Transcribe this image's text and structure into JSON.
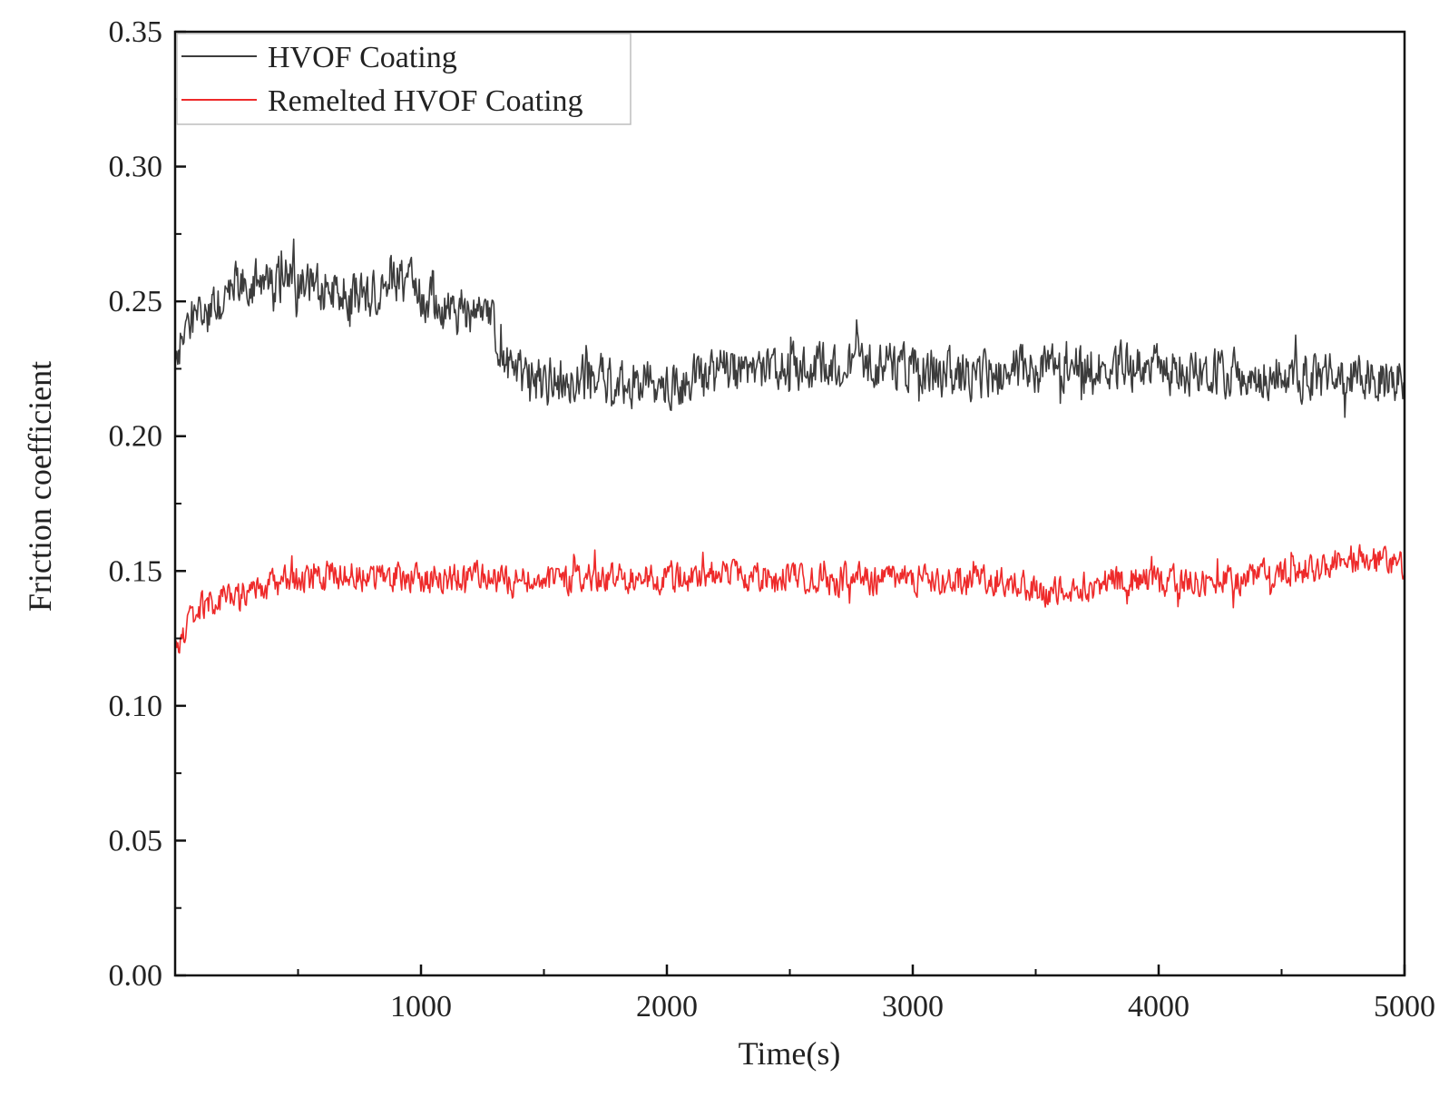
{
  "chart_data": {
    "type": "line",
    "title": "",
    "xlabel": "Time(s)",
    "ylabel": "Friction coefficient",
    "xlim": [
      0,
      5000
    ],
    "ylim": [
      0,
      0.35
    ],
    "grid": false,
    "legend_position": "top-left",
    "x_ticks": [
      {
        "value": 1000,
        "label": "1000"
      },
      {
        "value": 2000,
        "label": "2000"
      },
      {
        "value": 3000,
        "label": "3000"
      },
      {
        "value": 4000,
        "label": "4000"
      },
      {
        "value": 5000,
        "label": "5000"
      }
    ],
    "x_minor_ticks": [
      500,
      1500,
      2500,
      3500,
      4500
    ],
    "y_ticks": [
      {
        "value": 0.0,
        "label": "0.00"
      },
      {
        "value": 0.05,
        "label": "0.05"
      },
      {
        "value": 0.1,
        "label": "0.10"
      },
      {
        "value": 0.15,
        "label": "0.15"
      },
      {
        "value": 0.2,
        "label": "0.20"
      },
      {
        "value": 0.25,
        "label": "0.25"
      },
      {
        "value": 0.3,
        "label": "0.30"
      },
      {
        "value": 0.35,
        "label": "0.35"
      }
    ],
    "y_minor_ticks": [
      0.025,
      0.075,
      0.125,
      0.175,
      0.225,
      0.275,
      0.325
    ],
    "series": [
      {
        "name": "HVOF Coating",
        "color": "#3c3c3c",
        "noise": 0.012,
        "x": [
          0,
          50,
          100,
          200,
          250,
          300,
          400,
          500,
          600,
          700,
          800,
          900,
          1000,
          1100,
          1200,
          1280,
          1350,
          1450,
          1600,
          1800,
          2000,
          2200,
          2500,
          2800,
          3000,
          3200,
          3500,
          3800,
          4000,
          4200,
          4500,
          4800,
          5000
        ],
        "values": [
          0.226,
          0.243,
          0.242,
          0.249,
          0.258,
          0.257,
          0.258,
          0.258,
          0.255,
          0.252,
          0.253,
          0.258,
          0.254,
          0.245,
          0.247,
          0.244,
          0.225,
          0.22,
          0.221,
          0.221,
          0.218,
          0.223,
          0.225,
          0.227,
          0.225,
          0.222,
          0.226,
          0.225,
          0.225,
          0.224,
          0.223,
          0.221,
          0.219
        ]
      },
      {
        "name": "Remelted HVOF Coating",
        "color": "#ee2a2a",
        "noise": 0.0075,
        "x": [
          0,
          50,
          100,
          200,
          400,
          600,
          800,
          1000,
          1200,
          1500,
          1800,
          2000,
          2300,
          2600,
          3000,
          3300,
          3400,
          3500,
          3600,
          3800,
          4000,
          4200,
          4400,
          4600,
          4800,
          5000
        ],
        "values": [
          0.12,
          0.13,
          0.136,
          0.14,
          0.145,
          0.148,
          0.148,
          0.147,
          0.148,
          0.147,
          0.147,
          0.148,
          0.148,
          0.147,
          0.147,
          0.147,
          0.146,
          0.143,
          0.142,
          0.146,
          0.146,
          0.146,
          0.148,
          0.15,
          0.155,
          0.151
        ]
      }
    ]
  }
}
